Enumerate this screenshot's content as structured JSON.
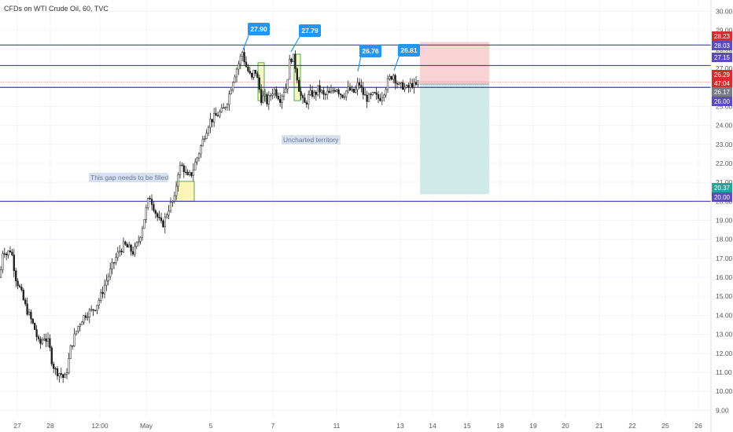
{
  "chart_title": "CFDs on WTI Crude Oil, 60, TVC",
  "chart_data": {
    "type": "candlestick",
    "title": "CFDs on WTI Crude Oil, 60, TVC",
    "y_axis": {
      "min": 8.6,
      "max": 30.6,
      "ticks": [
        "30.00",
        "29.00",
        "28.00",
        "27.00",
        "26.00",
        "25.00",
        "24.00",
        "23.00",
        "22.00",
        "21.00",
        "20.00",
        "19.00",
        "18.00",
        "17.00",
        "16.00",
        "15.00",
        "14.00",
        "13.00",
        "12.00",
        "11.00",
        "10.00",
        "9.00"
      ],
      "position": "right",
      "grid": true
    },
    "x_axis": {
      "tick_labels": [
        "27",
        "28",
        "12:00",
        "May",
        "5",
        "7",
        "11",
        "13",
        "14",
        "15",
        "18",
        "19",
        "20",
        "21",
        "22",
        "25",
        "26"
      ],
      "grid": true
    },
    "horizontal_levels": [
      {
        "price": 28.23,
        "color": "#3d3dbd"
      },
      {
        "price": 27.15,
        "color": "#3d3dbd"
      },
      {
        "price": 26.0,
        "color": "#3d3dbd"
      },
      {
        "price": 20.0,
        "color": "#3d3dbd"
      }
    ],
    "price_tags": [
      {
        "text": "28.23",
        "color": "#d32f2f"
      },
      {
        "text": "28.03",
        "color": "#5b4bbd"
      },
      {
        "text": "27.15",
        "color": "#5b4bbd"
      },
      {
        "text": "26.29",
        "color": "#d32f2f"
      },
      {
        "text": "47:04",
        "color": "#d32f2f"
      },
      {
        "text": "26.17",
        "color": "#787b86"
      },
      {
        "text": "26.00",
        "color": "#5b4bbd"
      },
      {
        "text": "20.37",
        "color": "#26a69a"
      },
      {
        "text": "20.00",
        "color": "#5b4bbd"
      }
    ],
    "callouts": [
      {
        "text": "27.90",
        "price": 27.9
      },
      {
        "text": "27.79",
        "price": 27.79
      },
      {
        "text": "26.76",
        "price": 26.76
      },
      {
        "text": "26.81",
        "price": 26.81
      }
    ],
    "annotations": [
      {
        "text": "This gap needs to be filled"
      },
      {
        "text": "Uncharted territory"
      }
    ],
    "trade_position": {
      "stop_loss": 28.23,
      "entry": 26.17,
      "take_profit": 20.37,
      "risk_color": "#f8d3d3",
      "reward_color": "#cfeae8"
    },
    "price_path": [
      [
        0,
        16.0
      ],
      [
        4,
        17.6
      ],
      [
        8,
        17.2
      ],
      [
        14,
        17.5
      ],
      [
        20,
        16.0
      ],
      [
        26,
        15.3
      ],
      [
        32,
        14.5
      ],
      [
        38,
        13.9
      ],
      [
        44,
        13.3
      ],
      [
        50,
        12.4
      ],
      [
        56,
        12.9
      ],
      [
        62,
        12.5
      ],
      [
        66,
        11.6
      ],
      [
        70,
        11.1
      ],
      [
        74,
        11.0
      ],
      [
        78,
        10.9
      ],
      [
        82,
        10.6
      ],
      [
        86,
        11.3
      ],
      [
        90,
        12.3
      ],
      [
        94,
        12.8
      ],
      [
        98,
        13.3
      ],
      [
        104,
        13.8
      ],
      [
        110,
        14.1
      ],
      [
        116,
        14.2
      ],
      [
        122,
        14.5
      ],
      [
        128,
        15.0
      ],
      [
        134,
        15.7
      ],
      [
        140,
        16.3
      ],
      [
        146,
        16.9
      ],
      [
        152,
        17.4
      ],
      [
        158,
        17.7
      ],
      [
        164,
        17.5
      ],
      [
        170,
        17.3
      ],
      [
        176,
        17.9
      ],
      [
        180,
        18.5
      ],
      [
        186,
        19.6
      ],
      [
        190,
        20.3
      ],
      [
        194,
        19.9
      ],
      [
        198,
        19.4
      ],
      [
        202,
        19.0
      ],
      [
        206,
        18.7
      ],
      [
        210,
        19.1
      ],
      [
        214,
        19.6
      ],
      [
        218,
        19.9
      ],
      [
        222,
        20.1
      ],
      [
        226,
        21.5
      ],
      [
        230,
        21.9
      ],
      [
        234,
        21.7
      ],
      [
        238,
        21.2
      ],
      [
        244,
        21.5
      ],
      [
        248,
        22.0
      ],
      [
        254,
        22.7
      ],
      [
        260,
        23.5
      ],
      [
        266,
        24.2
      ],
      [
        272,
        24.4
      ],
      [
        278,
        24.6
      ],
      [
        284,
        24.8
      ],
      [
        290,
        25.4
      ],
      [
        296,
        26.4
      ],
      [
        300,
        26.9
      ],
      [
        304,
        27.3
      ],
      [
        308,
        27.9
      ],
      [
        312,
        27.2
      ],
      [
        316,
        26.8
      ],
      [
        320,
        26.4
      ],
      [
        324,
        27.0
      ],
      [
        328,
        26.3
      ],
      [
        332,
        25.4
      ],
      [
        336,
        25.5
      ],
      [
        340,
        25.2
      ],
      [
        344,
        25.6
      ],
      [
        348,
        25.9
      ],
      [
        352,
        25.7
      ],
      [
        356,
        25.4
      ],
      [
        360,
        25.8
      ],
      [
        364,
        26.0
      ],
      [
        368,
        27.3
      ],
      [
        372,
        27.7
      ],
      [
        376,
        27.0
      ],
      [
        380,
        26.0
      ],
      [
        384,
        25.3
      ],
      [
        388,
        25.1
      ],
      [
        392,
        25.5
      ],
      [
        396,
        25.7
      ],
      [
        400,
        25.6
      ],
      [
        404,
        25.9
      ],
      [
        408,
        25.8
      ],
      [
        412,
        25.5
      ],
      [
        416,
        25.7
      ],
      [
        420,
        25.6
      ],
      [
        424,
        25.9
      ],
      [
        428,
        26.0
      ],
      [
        432,
        25.7
      ],
      [
        436,
        25.6
      ],
      [
        440,
        25.8
      ],
      [
        444,
        25.9
      ],
      [
        448,
        25.7
      ],
      [
        452,
        25.8
      ],
      [
        456,
        26.3
      ],
      [
        460,
        25.8
      ],
      [
        464,
        25.5
      ],
      [
        468,
        25.4
      ],
      [
        472,
        25.5
      ],
      [
        476,
        25.6
      ],
      [
        480,
        25.4
      ],
      [
        484,
        25.5
      ],
      [
        488,
        25.8
      ],
      [
        492,
        26.2
      ],
      [
        496,
        26.5
      ],
      [
        500,
        26.7
      ],
      [
        504,
        26.3
      ],
      [
        508,
        26.0
      ],
      [
        512,
        26.1
      ],
      [
        516,
        25.9
      ],
      [
        520,
        26.0
      ],
      [
        524,
        26.2
      ],
      [
        528,
        26.0
      ],
      [
        532,
        26.29
      ]
    ]
  }
}
